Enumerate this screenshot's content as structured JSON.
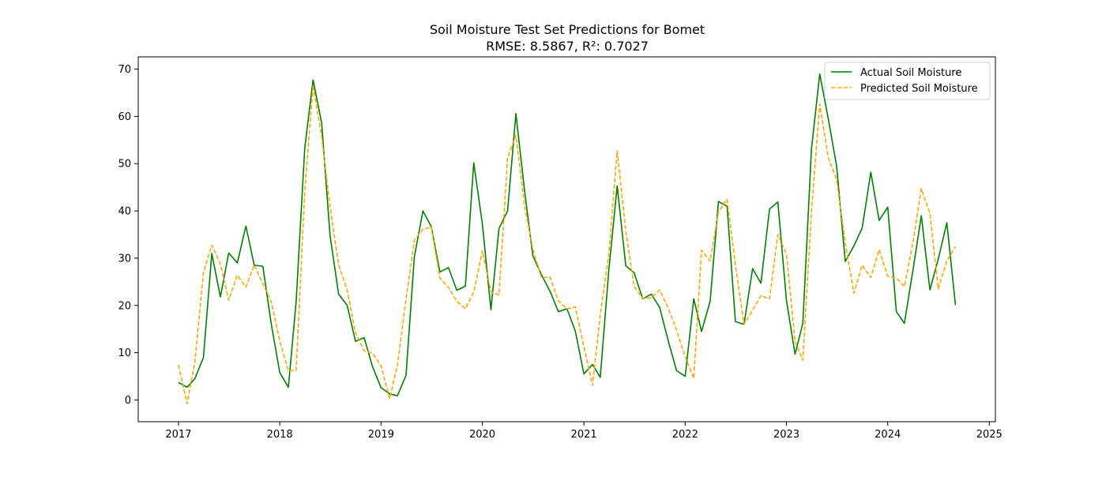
{
  "chart_data": {
    "type": "line",
    "title": "Soil Moisture Test Set Predictions for Bomet",
    "subtitle": "RMSE: 8.5867, R²: 0.7027",
    "xlabel": "",
    "ylabel": "",
    "x_axis": "date",
    "xlim": [
      "2016-08-09",
      "2025-01-23"
    ],
    "ylim": [
      -4.6,
      72.6
    ],
    "x_ticks": [
      "2017",
      "2018",
      "2019",
      "2020",
      "2021",
      "2022",
      "2023",
      "2024",
      "2025"
    ],
    "y_ticks": [
      "0",
      "10",
      "20",
      "30",
      "40",
      "50",
      "60",
      "70"
    ],
    "grid": false,
    "legend_position": "top-right",
    "x": [
      "2017-01",
      "2017-02",
      "2017-03",
      "2017-04",
      "2017-05",
      "2017-06",
      "2017-07",
      "2017-08",
      "2017-09",
      "2017-10",
      "2017-11",
      "2017-12",
      "2018-01",
      "2018-02",
      "2018-03",
      "2018-04",
      "2018-05",
      "2018-06",
      "2018-07",
      "2018-08",
      "2018-09",
      "2018-10",
      "2018-11",
      "2018-12",
      "2019-01",
      "2019-02",
      "2019-03",
      "2019-04",
      "2019-05",
      "2019-06",
      "2019-07",
      "2019-08",
      "2019-09",
      "2019-10",
      "2019-11",
      "2019-12",
      "2020-01",
      "2020-02",
      "2020-03",
      "2020-04",
      "2020-05",
      "2020-06",
      "2020-07",
      "2020-08",
      "2020-09",
      "2020-10",
      "2020-11",
      "2020-12",
      "2021-01",
      "2021-02",
      "2021-03",
      "2021-04",
      "2021-05",
      "2021-06",
      "2021-07",
      "2021-08",
      "2021-09",
      "2021-10",
      "2021-11",
      "2021-12",
      "2022-01",
      "2022-02",
      "2022-03",
      "2022-04",
      "2022-05",
      "2022-06",
      "2022-07",
      "2022-08",
      "2022-09",
      "2022-10",
      "2022-11",
      "2022-12",
      "2023-01",
      "2023-02",
      "2023-03",
      "2023-04",
      "2023-05",
      "2023-06",
      "2023-07",
      "2023-08",
      "2023-09",
      "2023-10",
      "2023-11",
      "2023-12",
      "2024-01",
      "2024-02",
      "2024-03",
      "2024-04",
      "2024-05",
      "2024-06",
      "2024-07",
      "2024-08",
      "2024-09"
    ],
    "series": [
      {
        "name": "Actual Soil Moisture",
        "color": "#008000",
        "style": "solid",
        "values": [
          3.7,
          2.7,
          4.5,
          9.0,
          31.0,
          21.8,
          31.1,
          29.0,
          36.8,
          28.5,
          28.3,
          16.2,
          5.8,
          2.7,
          20.8,
          53.3,
          67.7,
          58.6,
          34.9,
          22.4,
          20.0,
          12.4,
          13.2,
          7.1,
          2.6,
          1.3,
          0.9,
          5.2,
          30.3,
          40.0,
          36.7,
          27.1,
          28.0,
          23.2,
          24.1,
          50.2,
          37.3,
          19.1,
          36.3,
          40.0,
          60.6,
          44.4,
          30.5,
          26.5,
          23.0,
          18.7,
          19.3,
          14.6,
          5.5,
          7.5,
          4.8,
          27.6,
          45.3,
          28.4,
          26.9,
          21.4,
          22.4,
          19.6,
          12.5,
          6.2,
          5.0,
          21.4,
          14.5,
          20.9,
          42.0,
          41.0,
          16.6,
          16.0,
          27.8,
          24.7,
          40.4,
          41.9,
          21.1,
          9.7,
          16.2,
          53.0,
          69.0,
          59.4,
          49.4,
          29.3,
          32.6,
          36.4,
          48.2,
          38.0,
          40.8,
          18.7,
          16.2,
          27.5,
          39.0,
          23.3,
          29.8,
          37.5,
          20.1
        ]
      },
      {
        "name": "Predicted Soil Moisture",
        "color": "#ffa500",
        "style": "dashed",
        "values": [
          7.4,
          -0.8,
          8.0,
          27.0,
          32.8,
          28.8,
          21.1,
          26.4,
          23.9,
          28.6,
          24.6,
          20.8,
          12.5,
          6.1,
          6.3,
          44.1,
          66.6,
          55.7,
          40.9,
          28.6,
          23.2,
          14.2,
          10.4,
          9.9,
          7.2,
          0.3,
          7.3,
          21.3,
          33.8,
          36.1,
          36.6,
          25.8,
          23.8,
          20.9,
          19.3,
          22.8,
          31.6,
          22.9,
          22.2,
          51.3,
          56.0,
          41.2,
          31.9,
          25.9,
          26.0,
          21.0,
          19.3,
          19.7,
          11.3,
          3.1,
          18.0,
          30.9,
          52.7,
          35.7,
          24.0,
          21.5,
          21.6,
          23.3,
          19.4,
          14.8,
          9.2,
          4.6,
          31.7,
          29.4,
          39.8,
          42.5,
          28.6,
          16.0,
          19.0,
          22.1,
          21.4,
          35.0,
          30.9,
          12.4,
          8.4,
          39.8,
          62.6,
          51.2,
          46.6,
          33.2,
          22.6,
          28.5,
          25.9,
          31.8,
          26.2,
          25.8,
          24.0,
          33.4,
          44.7,
          39.5,
          23.5,
          29.4,
          32.5
        ]
      }
    ]
  }
}
